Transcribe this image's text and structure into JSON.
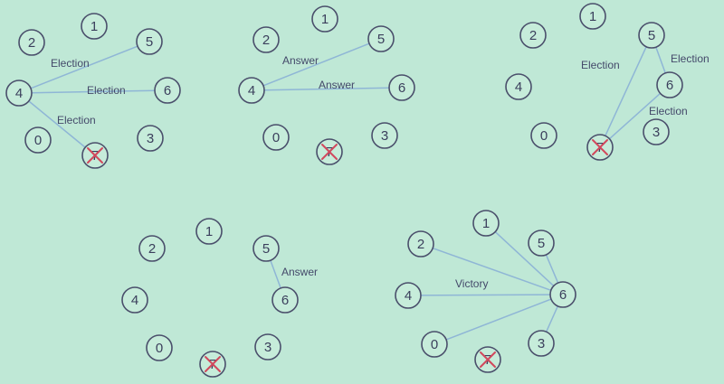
{
  "diagrams": [
    {
      "id": "step-1",
      "nodes": [
        {
          "label": "1",
          "crashed": false
        },
        {
          "label": "2",
          "crashed": false
        },
        {
          "label": "5",
          "crashed": false
        },
        {
          "label": "4",
          "crashed": false
        },
        {
          "label": "6",
          "crashed": false
        },
        {
          "label": "0",
          "crashed": false
        },
        {
          "label": "7",
          "crashed": true
        },
        {
          "label": "3",
          "crashed": false
        }
      ],
      "edges": [
        {
          "from": "4",
          "to": "5",
          "label": "Election"
        },
        {
          "from": "4",
          "to": "6",
          "label": "Election"
        },
        {
          "from": "4",
          "to": "7",
          "label": "Election"
        }
      ]
    },
    {
      "id": "step-2",
      "nodes": [
        {
          "label": "1",
          "crashed": false
        },
        {
          "label": "2",
          "crashed": false
        },
        {
          "label": "5",
          "crashed": false
        },
        {
          "label": "4",
          "crashed": false
        },
        {
          "label": "6",
          "crashed": false
        },
        {
          "label": "0",
          "crashed": false
        },
        {
          "label": "7",
          "crashed": true
        },
        {
          "label": "3",
          "crashed": false
        }
      ],
      "edges": [
        {
          "from": "4",
          "to": "5",
          "label": "Answer"
        },
        {
          "from": "4",
          "to": "6",
          "label": "Answer"
        }
      ]
    },
    {
      "id": "step-3",
      "nodes": [
        {
          "label": "1",
          "crashed": false
        },
        {
          "label": "2",
          "crashed": false
        },
        {
          "label": "5",
          "crashed": false
        },
        {
          "label": "4",
          "crashed": false
        },
        {
          "label": "6",
          "crashed": false
        },
        {
          "label": "0",
          "crashed": false
        },
        {
          "label": "7",
          "crashed": true
        },
        {
          "label": "3",
          "crashed": false
        }
      ],
      "edges": [
        {
          "from": "5",
          "to": "7",
          "label": "Election"
        },
        {
          "from": "5",
          "to": "6",
          "label": "Election"
        },
        {
          "from": "6",
          "to": "7",
          "label": "Election"
        }
      ]
    },
    {
      "id": "step-4",
      "nodes": [
        {
          "label": "1",
          "crashed": false
        },
        {
          "label": "2",
          "crashed": false
        },
        {
          "label": "5",
          "crashed": false
        },
        {
          "label": "4",
          "crashed": false
        },
        {
          "label": "6",
          "crashed": false
        },
        {
          "label": "0",
          "crashed": false
        },
        {
          "label": "7",
          "crashed": true
        },
        {
          "label": "3",
          "crashed": false
        }
      ],
      "edges": [
        {
          "from": "5",
          "to": "6",
          "label": "Answer"
        }
      ]
    },
    {
      "id": "step-5",
      "nodes": [
        {
          "label": "1",
          "crashed": false
        },
        {
          "label": "2",
          "crashed": false
        },
        {
          "label": "5",
          "crashed": false
        },
        {
          "label": "4",
          "crashed": false
        },
        {
          "label": "6",
          "crashed": false
        },
        {
          "label": "0",
          "crashed": false
        },
        {
          "label": "7",
          "crashed": true
        },
        {
          "label": "3",
          "crashed": false
        }
      ],
      "edges": [
        {
          "from": "6",
          "to": "1",
          "label": ""
        },
        {
          "from": "6",
          "to": "2",
          "label": ""
        },
        {
          "from": "6",
          "to": "5",
          "label": ""
        },
        {
          "from": "6",
          "to": "4",
          "label": "Victory"
        },
        {
          "from": "6",
          "to": "0",
          "label": ""
        },
        {
          "from": "6",
          "to": "3",
          "label": ""
        }
      ]
    }
  ],
  "colors": {
    "background": "#bfe8d6",
    "node_stroke": "#4a4f6b",
    "edge": "#8fb6d6",
    "crash_mark": "#d2485d"
  }
}
